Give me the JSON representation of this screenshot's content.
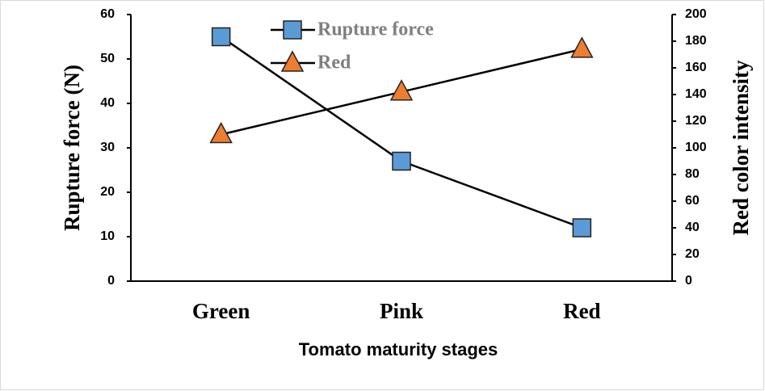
{
  "chart_data": {
    "type": "line",
    "categories": [
      "Green",
      "Pink",
      "Red"
    ],
    "series": [
      {
        "name": "Rupture force",
        "color": "#5b9bd5",
        "marker": "square",
        "values": [
          55,
          27,
          12
        ]
      },
      {
        "name": "Red",
        "color": "#ed7d31",
        "marker": "triangle",
        "axis": "y2",
        "values": [
          110,
          142,
          174
        ]
      }
    ],
    "ylim": [
      0,
      60
    ],
    "yticks": [
      0,
      10,
      20,
      30,
      40,
      50,
      60
    ],
    "y2lim": [
      0,
      200
    ],
    "y2ticks": [
      0,
      20,
      40,
      60,
      80,
      100,
      120,
      140,
      160,
      180,
      200
    ],
    "ylabel": "Rupture force (N)",
    "y2label": "Red color intensity",
    "xlabel": "Tomato maturity stages",
    "legend": "top"
  }
}
